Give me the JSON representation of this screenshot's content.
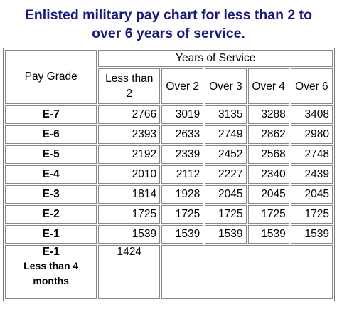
{
  "header": {
    "title": "Enlisted military pay chart for less than 2 to over 6 years of service."
  },
  "table": {
    "grade_header": "Pay Grade",
    "group_header": "Years of Service",
    "columns": [
      "Less than 2",
      "Over 2",
      "Over 3",
      "Over 4",
      "Over 6"
    ],
    "rows": [
      {
        "grade": "E-7",
        "values": [
          2766,
          3019,
          3135,
          3288,
          3408
        ]
      },
      {
        "grade": "E-6",
        "values": [
          2393,
          2633,
          2749,
          2862,
          2980
        ]
      },
      {
        "grade": "E-5",
        "values": [
          2192,
          2339,
          2452,
          2568,
          2748
        ]
      },
      {
        "grade": "E-4",
        "values": [
          2010,
          2112,
          2227,
          2340,
          2439
        ]
      },
      {
        "grade": "E-3",
        "values": [
          1814,
          1928,
          2045,
          2045,
          2045
        ]
      },
      {
        "grade": "E-2",
        "values": [
          1725,
          1725,
          1725,
          1725,
          1725
        ]
      },
      {
        "grade": "E-1",
        "values": [
          1539,
          1539,
          1539,
          1539,
          1539
        ]
      }
    ],
    "last_row": {
      "grade": "E-1",
      "note": "Less than 4 months",
      "value": 1424
    }
  }
}
